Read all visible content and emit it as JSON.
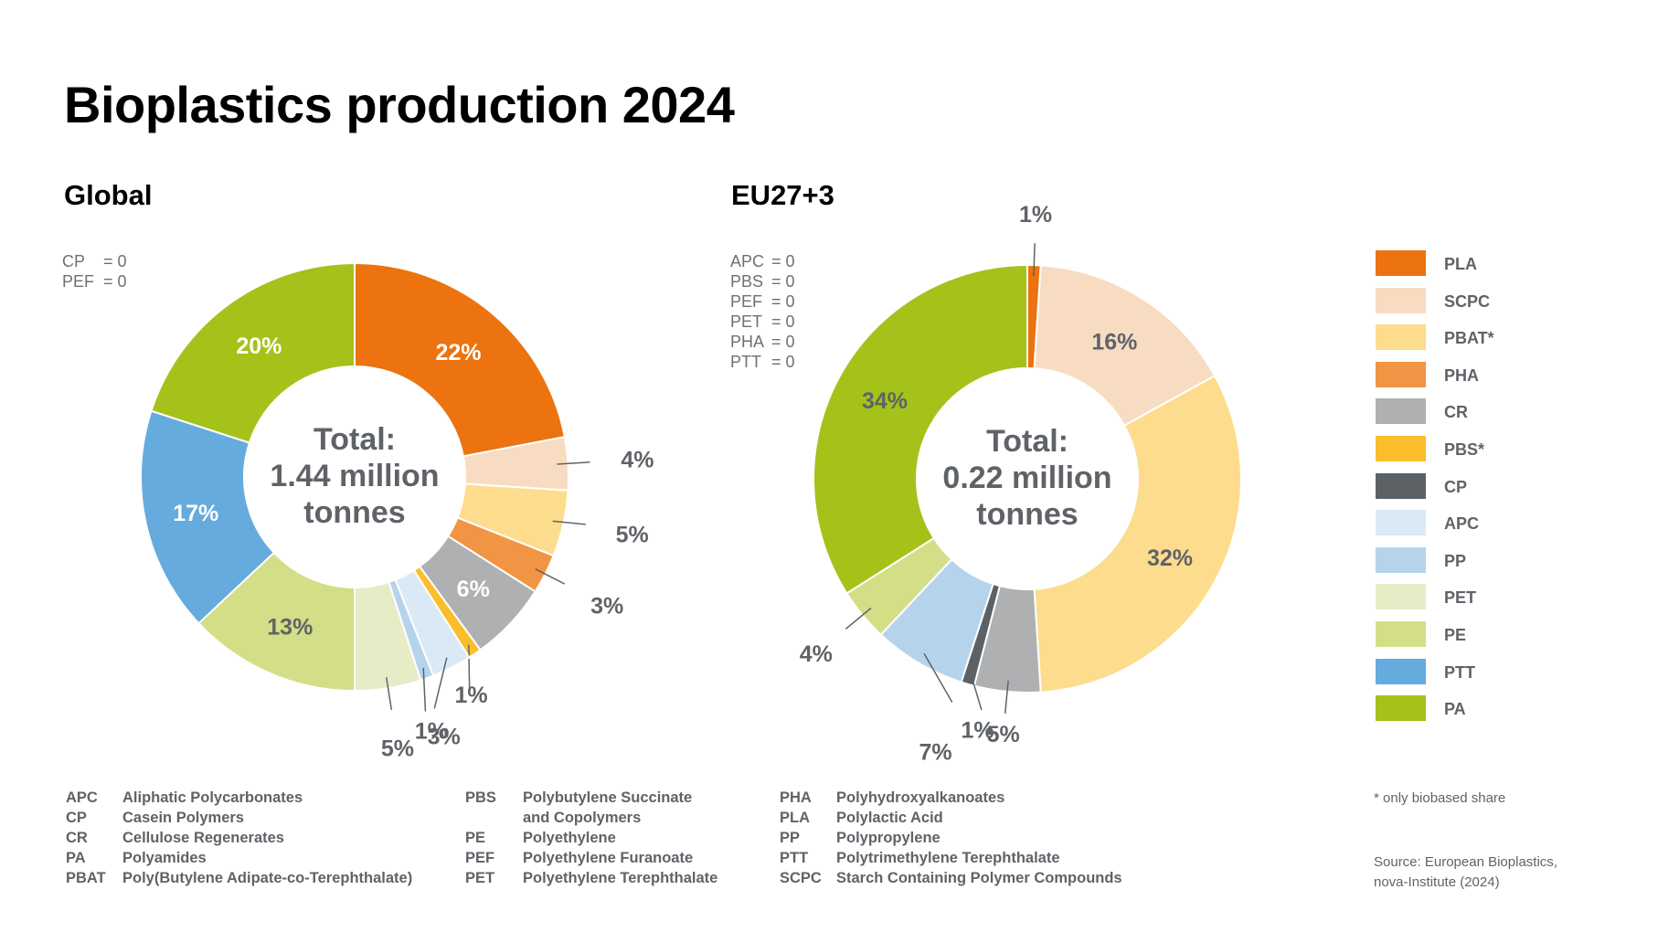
{
  "title": "Bioplastics production 2024",
  "global": {
    "subtitle": "Global",
    "zero_items": [
      {
        "abbr": "CP",
        "value": "= 0"
      },
      {
        "abbr": "PEF",
        "value": "= 0"
      }
    ]
  },
  "eu": {
    "subtitle": "EU27+3",
    "zero_items": [
      {
        "abbr": "APC",
        "value": "= 0"
      },
      {
        "abbr": "PBS",
        "value": "= 0"
      },
      {
        "abbr": "PEF",
        "value": "= 0"
      },
      {
        "abbr": "PET",
        "value": "= 0"
      },
      {
        "abbr": "PHA",
        "value": "= 0"
      },
      {
        "abbr": "PTT",
        "value": "= 0"
      }
    ]
  },
  "colors": {
    "PLA": "#ec730f",
    "SCPC": "#f8dcc2",
    "PBAT*": "#fddc8d",
    "PHA": "#f19444",
    "CR": "#aeb0b2",
    "PBS*": "#fbbd2b",
    "CP": "#5c6166",
    "APC": "#d9e9f5",
    "PP": "#b5d4ec",
    "PET": "#e6ecc6",
    "PE": "#d3de86",
    "PTT": "#66abdd",
    "PA": "#a5c21b"
  },
  "chart_data": [
    {
      "type": "pie",
      "title": "Global",
      "center_label": [
        "Total:",
        "1.44 million",
        "tonnes"
      ],
      "categories": [
        "PLA",
        "SCPC",
        "PBAT*",
        "PHA",
        "CR",
        "PBS*",
        "APC",
        "PP",
        "PET",
        "PE",
        "PTT",
        "PA"
      ],
      "values": [
        22,
        4,
        5,
        3,
        6,
        1,
        3,
        1,
        5,
        13,
        17,
        20
      ],
      "data_labels": [
        "22%",
        "4%",
        "5%",
        "3%",
        "6%",
        "1%",
        "3%",
        "1%",
        "5%",
        "13%",
        "17%",
        "20%"
      ]
    },
    {
      "type": "pie",
      "title": "EU27+3",
      "center_label": [
        "Total:",
        "0.22 million",
        "tonnes"
      ],
      "categories": [
        "PLA",
        "SCPC",
        "PBAT*",
        "CR",
        "CP",
        "PP",
        "PE",
        "PA"
      ],
      "values": [
        1,
        16,
        32,
        5,
        1,
        7,
        4,
        34
      ],
      "data_labels": [
        "1%",
        "16%",
        "32%",
        "5%",
        "1%",
        "7%",
        "4%",
        "34%"
      ]
    }
  ],
  "legend": [
    "PLA",
    "SCPC",
    "PBAT*",
    "PHA",
    "CR",
    "PBS*",
    "CP",
    "APC",
    "PP",
    "PET",
    "PE",
    "PTT",
    "PA"
  ],
  "abbreviations": [
    [
      {
        "abbr": "APC",
        "name": "Aliphatic Polycarbonates"
      },
      {
        "abbr": "CP",
        "name": "Casein Polymers"
      },
      {
        "abbr": "CR",
        "name": "Cellulose Regenerates"
      },
      {
        "abbr": "PA",
        "name": "Polyamides"
      },
      {
        "abbr": "PBAT",
        "name": "Poly(Butylene Adipate-co-Terephthalate)"
      }
    ],
    [
      {
        "abbr": "PBS",
        "name": "Polybutylene Succinate"
      },
      {
        "abbr": "",
        "name": "and Copolymers"
      },
      {
        "abbr": "PE",
        "name": "Polyethylene"
      },
      {
        "abbr": "PEF",
        "name": "Polyethylene Furanoate"
      },
      {
        "abbr": "PET",
        "name": "Polyethylene Terephthalate"
      }
    ],
    [
      {
        "abbr": "PHA",
        "name": "Polyhydroxyalkanoates"
      },
      {
        "abbr": "PLA",
        "name": "Polylactic Acid"
      },
      {
        "abbr": "PP",
        "name": "Polypropylene"
      },
      {
        "abbr": "PTT",
        "name": "Polytrimethylene Terephthalate"
      },
      {
        "abbr": "SCPC",
        "name": "Starch Containing Polymer Compounds"
      }
    ]
  ],
  "footnote": "* only biobased share",
  "source": "Source: European Bioplastics, nova-Institute (2024)"
}
